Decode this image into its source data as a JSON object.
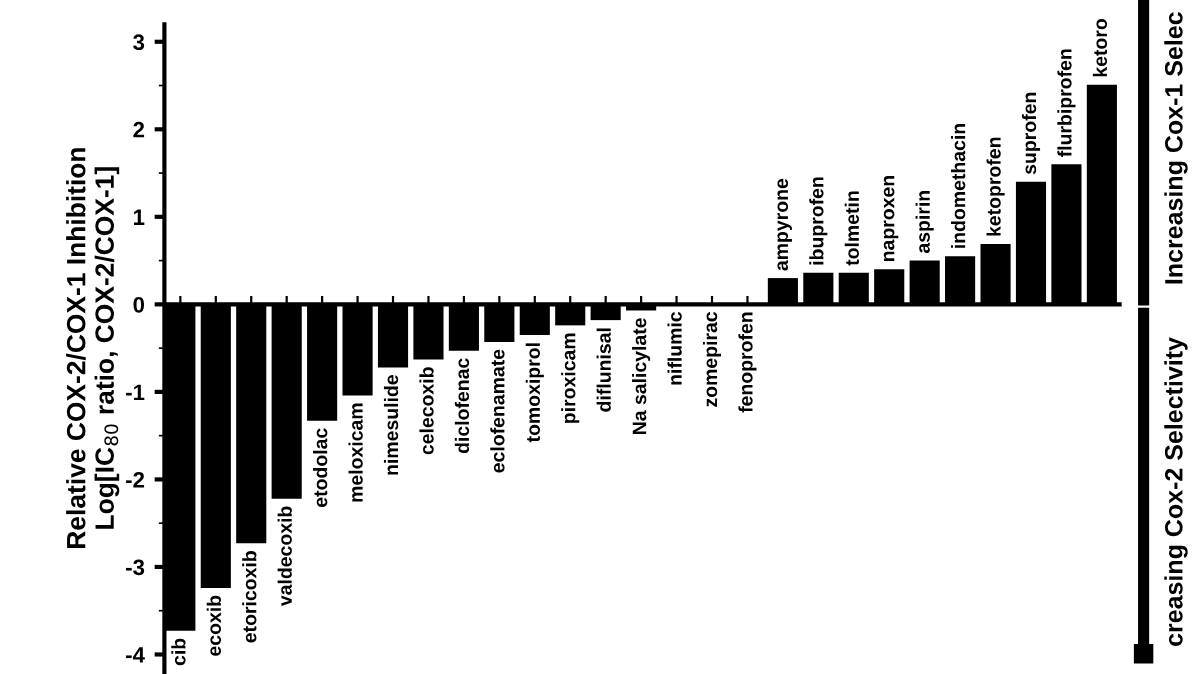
{
  "chart_data": {
    "type": "bar",
    "ylabel": "Relative COX-2/COX-1 Inhibition\nLog[IC$_{80}$ ratio, COX-2/COX-1]",
    "categories": [
      "cib",
      "ecoxib",
      "etoricoxib",
      "valdecoxib",
      "etodolac",
      "meloxicam",
      "nimesulide",
      "celecoxib",
      "diclofenac",
      "eclofenamate",
      "tomoxiprol",
      "piroxicam",
      "diflunisal",
      "Na salicylate",
      "niflumic",
      "zomepirac",
      "fenoprofen",
      "ampyrone",
      "ibuprofen",
      "tolmetin",
      "naproxen",
      "aspirin",
      "indomethacin",
      "ketoprofen",
      "suprofen",
      "flurbiprofen",
      "ketoro"
    ],
    "values": [
      -3.73,
      -3.24,
      -2.73,
      -2.22,
      -1.33,
      -1.04,
      -0.72,
      -0.63,
      -0.53,
      -0.43,
      -0.35,
      -0.24,
      -0.18,
      -0.07,
      0,
      0,
      0,
      0.3,
      0.36,
      0.36,
      0.4,
      0.5,
      0.55,
      0.69,
      1.4,
      1.6,
      2.51
    ],
    "color": "#000000",
    "ylim": [
      -4.2,
      3.2
    ],
    "yticks": [
      -4,
      -3,
      -2,
      -1,
      0,
      1,
      2,
      3
    ],
    "grid": false,
    "annotations": [
      "Increasing Cox-1 Selec",
      "creasing Cox-2 Selectivity"
    ]
  }
}
